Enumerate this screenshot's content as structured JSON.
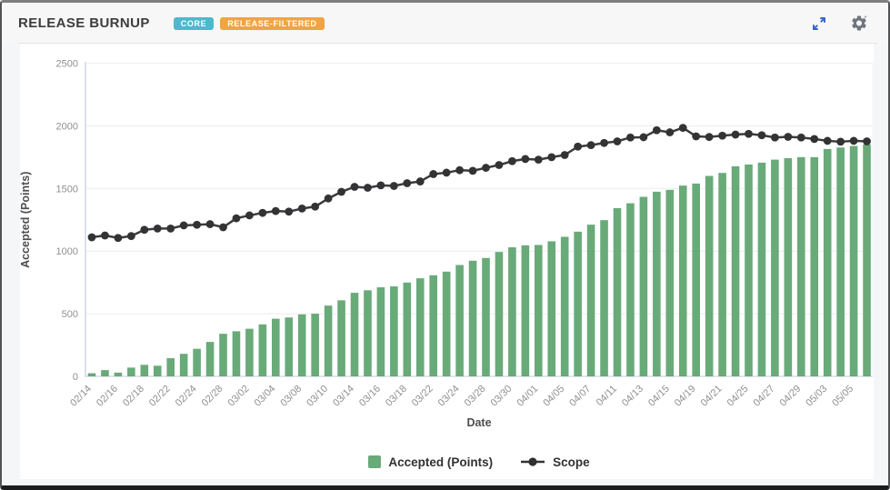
{
  "header": {
    "title": "RELEASE BURNUP",
    "badges": [
      {
        "label": "CORE",
        "color": "#4cb9cc"
      },
      {
        "label": "RELEASE-FILTERED",
        "color": "#f2a342"
      }
    ],
    "icons": [
      {
        "name": "expand-icon",
        "color": "#3c66c4"
      },
      {
        "name": "gear-icon",
        "color": "#70767e"
      }
    ]
  },
  "chart_data": {
    "type": "combo-bar-line",
    "title": "RELEASE BURNUP",
    "xlabel": "Date",
    "ylabel": "Accepted (Points)",
    "ylim": [
      0,
      2500
    ],
    "yticks": [
      0,
      500,
      1000,
      1500,
      2000,
      2500
    ],
    "grid": "horizontal",
    "legend_position": "bottom",
    "x_dates": [
      "02/14",
      "02/15",
      "02/16",
      "02/17",
      "02/18",
      "02/21",
      "02/22",
      "02/23",
      "02/24",
      "02/25",
      "02/28",
      "03/01",
      "03/02",
      "03/03",
      "03/04",
      "03/07",
      "03/08",
      "03/09",
      "03/10",
      "03/11",
      "03/14",
      "03/15",
      "03/16",
      "03/17",
      "03/18",
      "03/21",
      "03/22",
      "03/23",
      "03/24",
      "03/25",
      "03/28",
      "03/29",
      "03/30",
      "03/31",
      "04/01",
      "04/04",
      "04/05",
      "04/06",
      "04/07",
      "04/08",
      "04/11",
      "04/12",
      "04/13",
      "04/14",
      "04/15",
      "04/18",
      "04/19",
      "04/20",
      "04/21",
      "04/22",
      "04/25",
      "04/26",
      "04/27",
      "04/28",
      "04/29",
      "05/02",
      "05/03",
      "05/04",
      "05/05",
      "05/06"
    ],
    "x_tick_labels": [
      "02/14",
      "02/16",
      "02/18",
      "02/22",
      "02/24",
      "02/28",
      "03/02",
      "03/04",
      "03/08",
      "03/10",
      "03/14",
      "03/16",
      "03/18",
      "03/22",
      "03/24",
      "03/28",
      "03/30",
      "04/01",
      "04/05",
      "04/07",
      "04/11",
      "04/13",
      "04/15",
      "04/19",
      "04/21",
      "04/25",
      "04/27",
      "04/29",
      "05/03",
      "05/05"
    ],
    "series": [
      {
        "name": "Accepted (Points)",
        "type": "bar",
        "color": "#69aa79",
        "values": [
          25,
          50,
          30,
          70,
          92,
          85,
          145,
          180,
          220,
          275,
          340,
          360,
          380,
          415,
          460,
          470,
          495,
          500,
          565,
          607,
          667,
          687,
          711,
          718,
          749,
          783,
          807,
          836,
          889,
          923,
          945,
          993,
          1030,
          1046,
          1049,
          1078,
          1114,
          1155,
          1211,
          1247,
          1343,
          1382,
          1433,
          1474,
          1489,
          1523,
          1539,
          1600,
          1624,
          1677,
          1691,
          1706,
          1730,
          1742,
          1750,
          1750,
          1815,
          1827,
          1839,
          1851
        ]
      },
      {
        "name": "Scope",
        "type": "line",
        "color": "#3b3b3d",
        "values": [
          1110,
          1125,
          1105,
          1120,
          1170,
          1180,
          1180,
          1205,
          1210,
          1215,
          1190,
          1262,
          1285,
          1305,
          1320,
          1315,
          1340,
          1355,
          1420,
          1473,
          1513,
          1506,
          1525,
          1520,
          1542,
          1556,
          1615,
          1626,
          1646,
          1641,
          1665,
          1687,
          1718,
          1735,
          1730,
          1750,
          1767,
          1834,
          1846,
          1863,
          1876,
          1907,
          1909,
          1965,
          1948,
          1984,
          1916,
          1911,
          1921,
          1930,
          1936,
          1925,
          1907,
          1912,
          1907,
          1895,
          1880,
          1873,
          1880,
          1876
        ]
      }
    ]
  },
  "legend": {
    "items": [
      "Accepted (Points)",
      "Scope"
    ]
  }
}
